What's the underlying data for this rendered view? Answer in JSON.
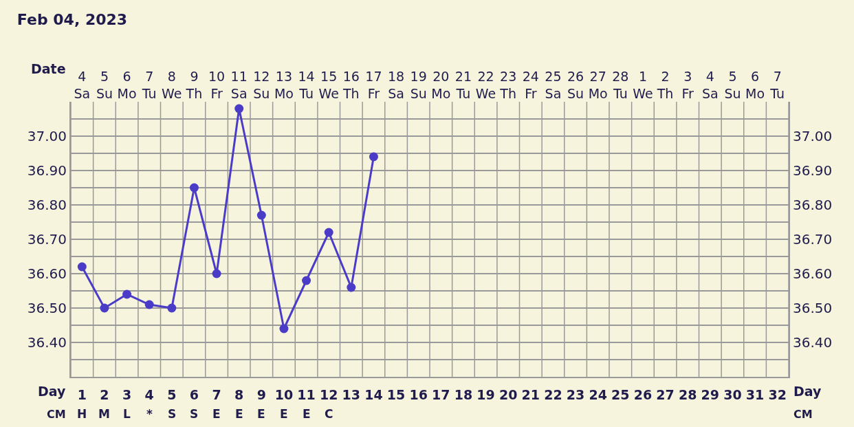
{
  "chart_data": {
    "type": "line",
    "title": "Feb 04, 2023",
    "categories": [
      "4\nSa",
      "5\nSu",
      "6\nMo",
      "7\nTu",
      "8\nWe",
      "9\nTh",
      "10\nFr",
      "11\nSa",
      "12\nSu",
      "13\nMo",
      "14\nTu",
      "15\nWe",
      "16\nTh",
      "17\nFr",
      "18\nSa",
      "19\nSu",
      "20\nMo",
      "21\nTu",
      "22\nWe",
      "23\nTh",
      "24\nFr",
      "25\nSa",
      "26\nSu",
      "27\nMo",
      "28\nTu",
      "1\nWe",
      "2\nTh",
      "3\nFr",
      "4\nSa",
      "5\nSu",
      "6\nMo",
      "7\nTu"
    ],
    "series": [
      {
        "color": "#4b3cc8",
        "values": [
          36.62,
          36.5,
          36.54,
          36.51,
          36.5,
          36.85,
          36.6,
          37.08,
          36.77,
          36.44,
          36.58,
          36.72,
          36.56,
          36.94,
          null,
          null,
          null,
          null,
          null,
          null,
          null,
          null,
          null,
          null,
          null,
          null,
          null,
          null,
          null,
          null,
          null,
          null
        ]
      }
    ],
    "ylim": [
      36.3,
      37.1
    ],
    "yticks": [
      {
        "value": 36.4,
        "label": "36.40"
      },
      {
        "value": 36.5,
        "label": "36.50"
      },
      {
        "value": 36.6,
        "label": "36.60"
      },
      {
        "value": 36.7,
        "label": "36.70"
      },
      {
        "value": 36.8,
        "label": "36.80"
      },
      {
        "value": 36.9,
        "label": "36.90"
      },
      {
        "value": 37.0,
        "label": "37.00"
      }
    ],
    "y2lim": [
      36.3,
      37.1
    ],
    "y2ticks": [
      {
        "value": 36.4,
        "label": "36.40"
      },
      {
        "value": 36.5,
        "label": "36.50"
      },
      {
        "value": 36.6,
        "label": "36.60"
      },
      {
        "value": 36.7,
        "label": "36.70"
      },
      {
        "value": 36.8,
        "label": "36.80"
      },
      {
        "value": 36.9,
        "label": "36.90"
      },
      {
        "value": 37.0,
        "label": "37.00"
      }
    ],
    "x2label": "Day",
    "x2lim": [
      0.5,
      32.5
    ],
    "x2ticks": [
      1,
      2,
      3,
      4,
      5,
      6,
      7,
      8,
      9,
      10,
      11,
      12,
      13,
      14,
      15,
      16,
      17,
      18,
      19,
      20,
      21,
      22,
      23,
      24,
      25,
      26,
      27,
      28,
      29,
      30,
      31,
      32
    ],
    "grid": true,
    "marker": "circle",
    "line_style": "solid",
    "annotations": [
      "Date",
      "CM",
      "CM",
      "H",
      "M",
      "L",
      "*",
      "S",
      "S",
      "E",
      "E",
      "E",
      "E",
      "E",
      "C"
    ]
  }
}
